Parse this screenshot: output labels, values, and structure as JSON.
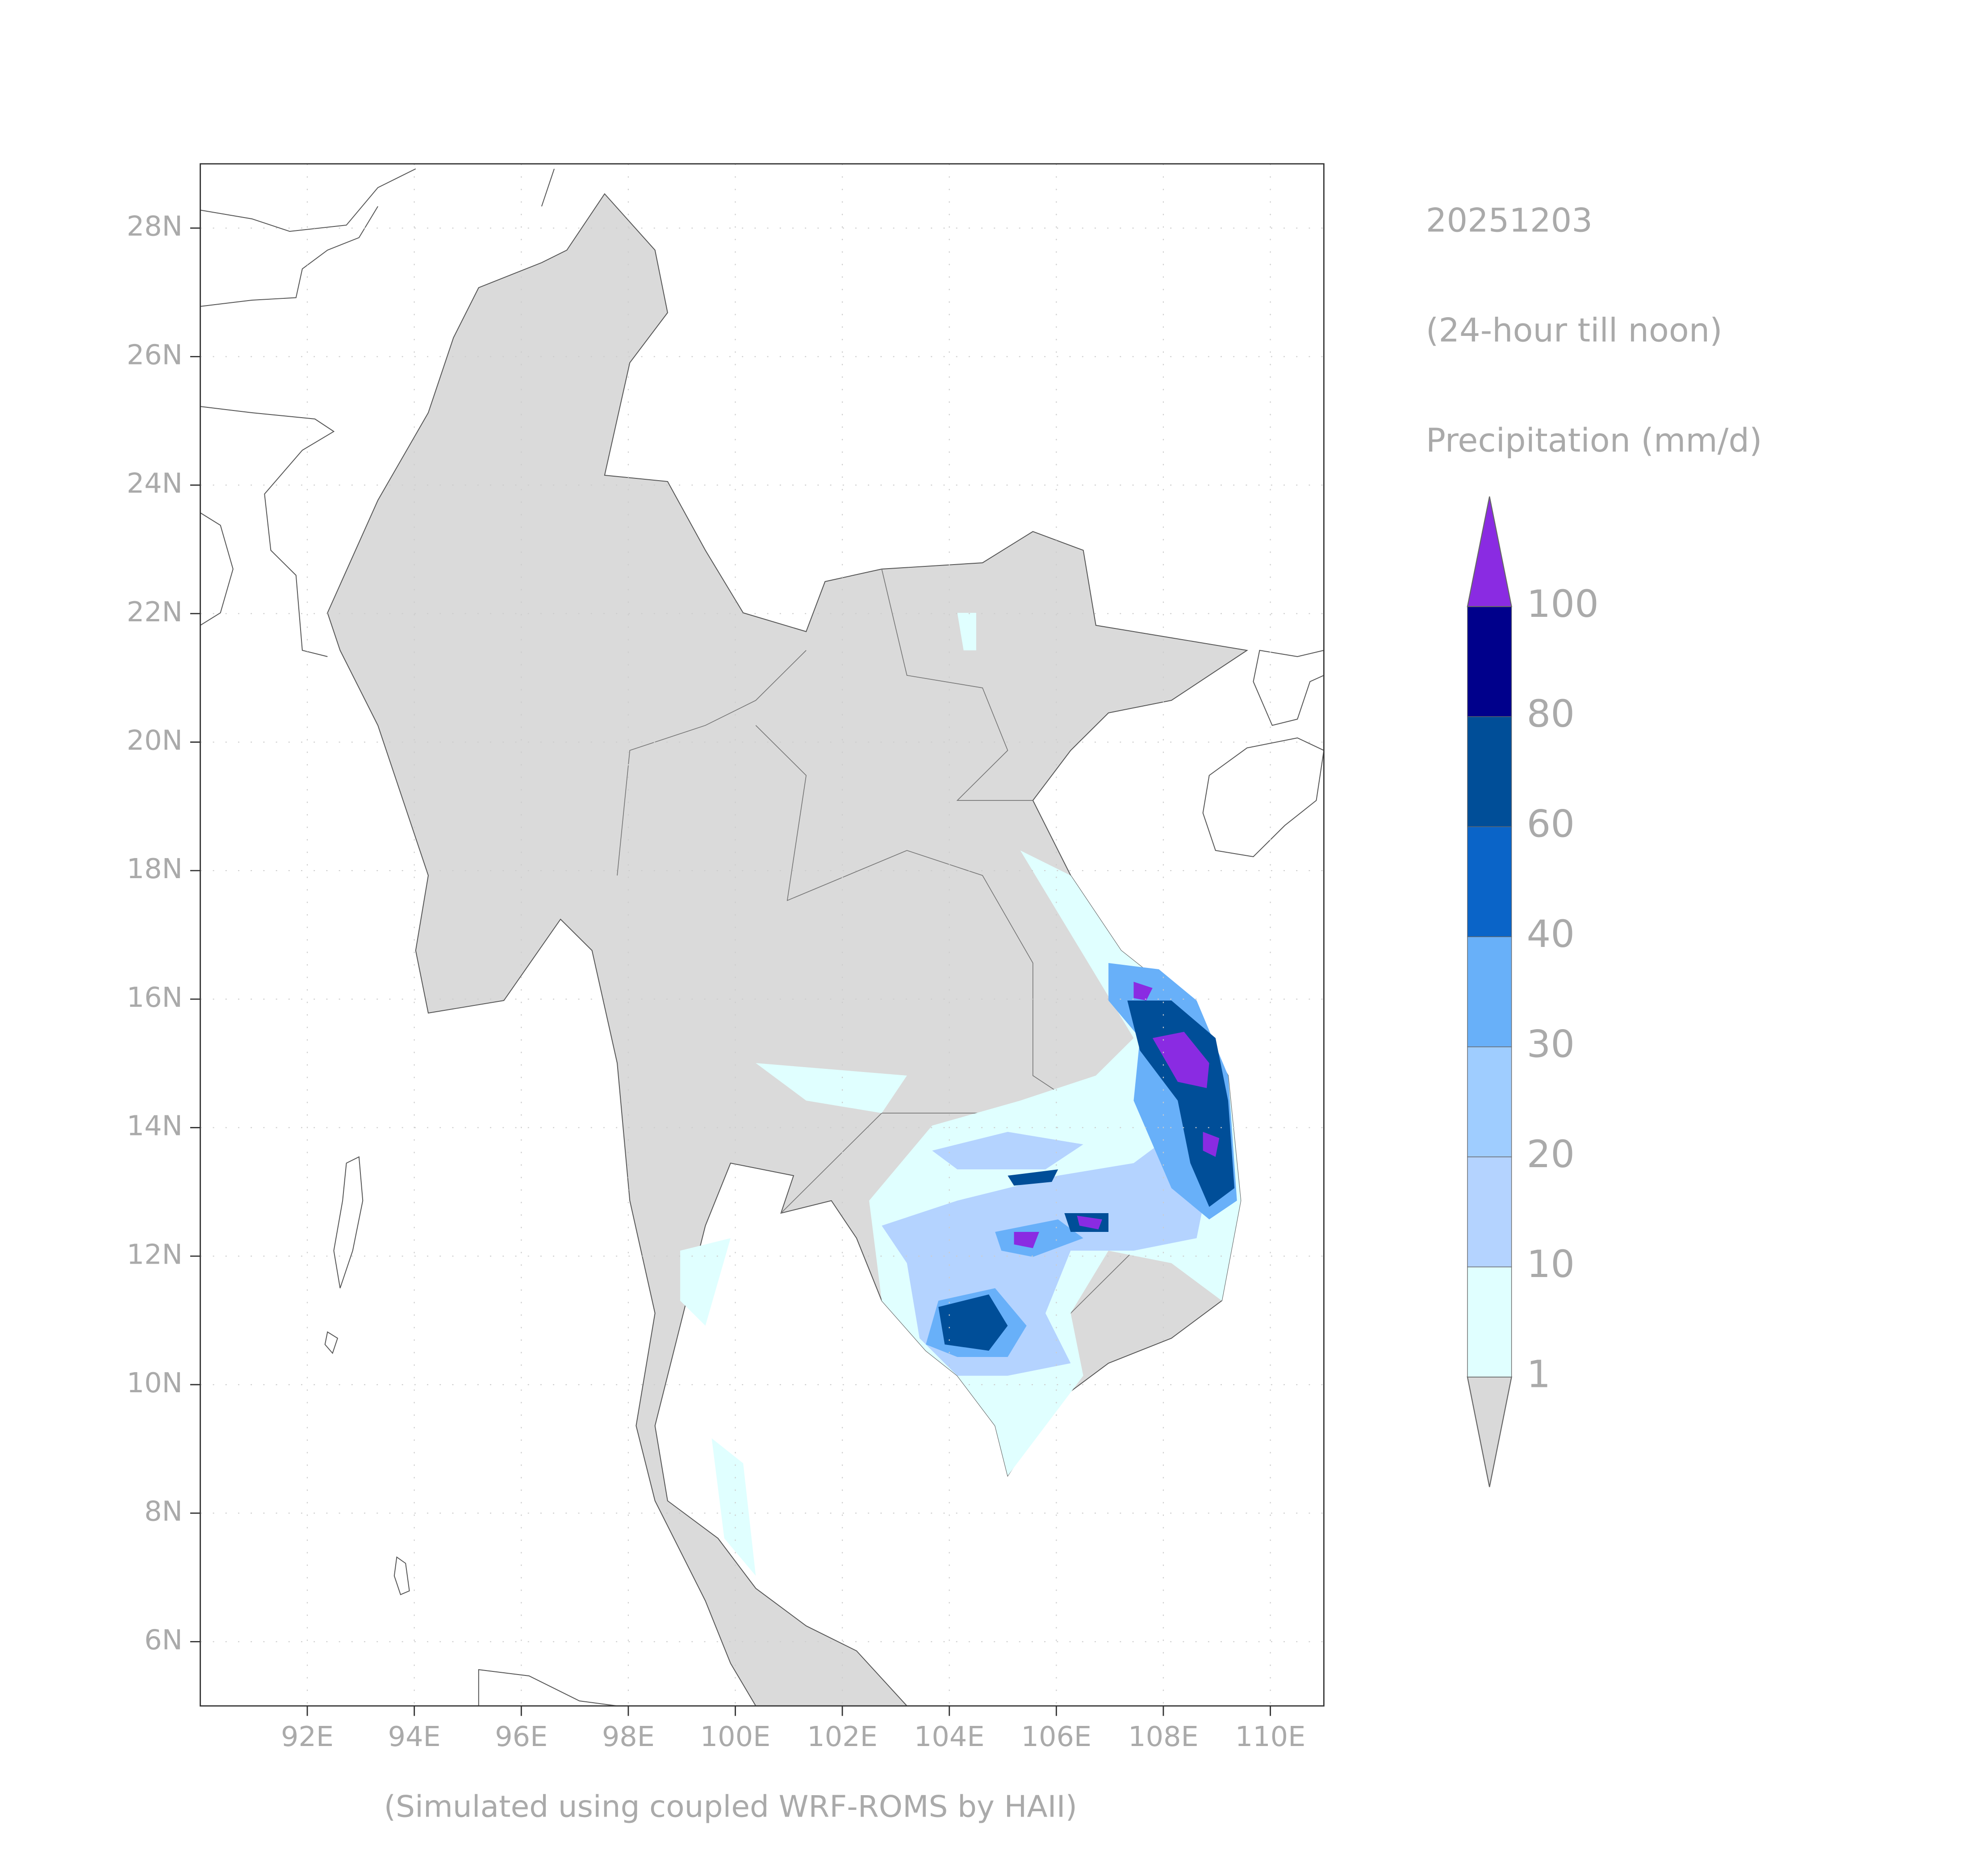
{
  "chart_data": {
    "type": "map",
    "title": "20251203",
    "subtitle": "(24-hour till noon)",
    "colorbar_title": "Precipitation (mm/d)",
    "caption": "(Simulated using coupled WRF-ROMS by HAII)",
    "xlim": [
      90,
      111
    ],
    "ylim": [
      5,
      29
    ],
    "xticks": [
      {
        "value": 92,
        "label": "92E"
      },
      {
        "value": 94,
        "label": "94E"
      },
      {
        "value": 96,
        "label": "96E"
      },
      {
        "value": 98,
        "label": "98E"
      },
      {
        "value": 100,
        "label": "100E"
      },
      {
        "value": 102,
        "label": "102E"
      },
      {
        "value": 104,
        "label": "104E"
      },
      {
        "value": 106,
        "label": "106E"
      },
      {
        "value": 108,
        "label": "108E"
      },
      {
        "value": 110,
        "label": "110E"
      }
    ],
    "yticks": [
      {
        "value": 6,
        "label": "6N"
      },
      {
        "value": 8,
        "label": "8N"
      },
      {
        "value": 10,
        "label": "10N"
      },
      {
        "value": 12,
        "label": "12N"
      },
      {
        "value": 14,
        "label": "14N"
      },
      {
        "value": 16,
        "label": "16N"
      },
      {
        "value": 18,
        "label": "18N"
      },
      {
        "value": 20,
        "label": "20N"
      },
      {
        "value": 22,
        "label": "22N"
      },
      {
        "value": 24,
        "label": "24N"
      },
      {
        "value": 26,
        "label": "26N"
      },
      {
        "value": 28,
        "label": "28N"
      }
    ],
    "grid": true,
    "colorbar": {
      "levels": [
        1,
        10,
        20,
        30,
        40,
        60,
        80,
        100
      ],
      "colors": [
        "#d9d9d9",
        "#e0ffff",
        "#b4d3ff",
        "#9fcdff",
        "#68b0f9",
        "#0a64c8",
        "#004e98",
        "#00008b",
        "#8a2be2"
      ]
    }
  }
}
